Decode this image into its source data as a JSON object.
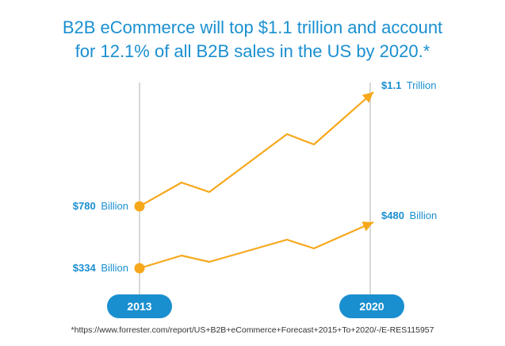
{
  "header": {
    "title_line1": "B2B eCommerce will top $1.1 trillion and account",
    "title_line2": "for 12.1% of all B2B sales in the US by 2020.*"
  },
  "footnote": "*https://www.forrester.com/report/US+B2B+eCommerce+Forecast+2015+To+2020/-/E-RES115957",
  "colors": {
    "accent": "#1a8fd0",
    "line": "#f6a81c",
    "axis": "#cccccc",
    "pill": "#1a8fd0"
  },
  "chart_data": {
    "type": "line",
    "x_labels": [
      "2013",
      "2020"
    ],
    "series": [
      {
        "start_label": {
          "value": "$780",
          "unit": "Billion"
        },
        "end_label": {
          "value": "$1.1",
          "unit": "Trillion"
        },
        "start_value": 780,
        "end_value": 1100
      },
      {
        "start_label": {
          "value": "$334",
          "unit": "Billion"
        },
        "end_label": {
          "value": "$480",
          "unit": "Billion"
        },
        "start_value": 334,
        "end_value": 480
      }
    ],
    "grid": false,
    "legend": "none"
  }
}
